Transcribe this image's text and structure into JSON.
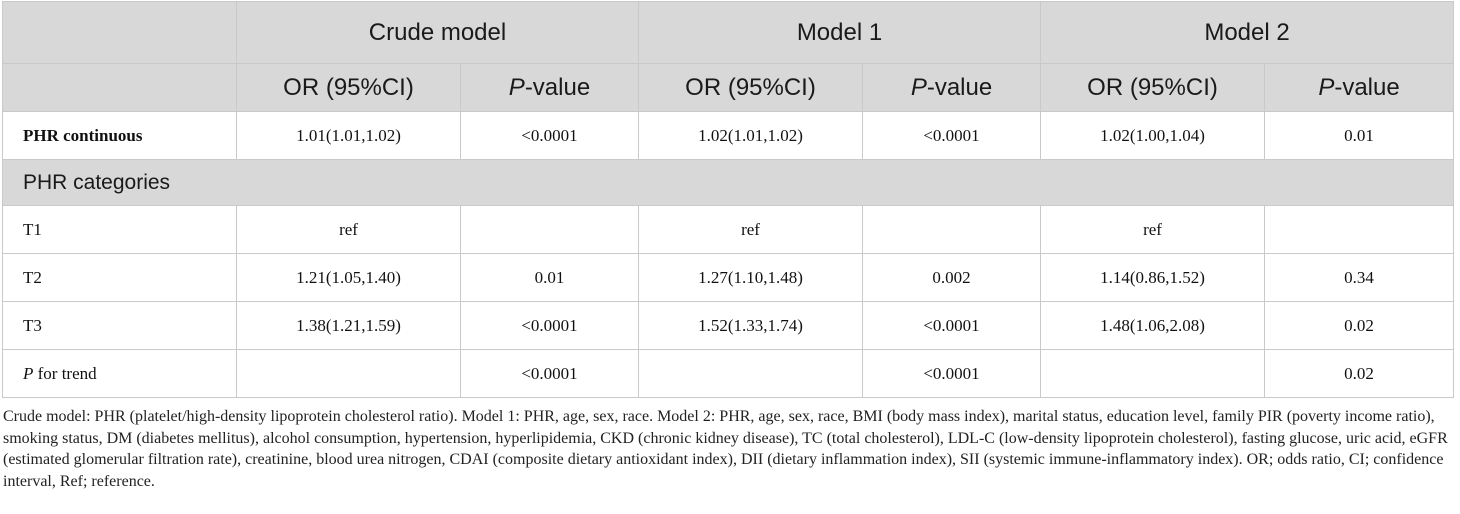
{
  "header": {
    "group1": "Crude model",
    "group2": "Model 1",
    "group3": "Model 2",
    "or_label": "OR (95%CI)",
    "p_letter": "P",
    "p_suffix": "-value"
  },
  "rows": {
    "continuous": {
      "label": "PHR continuous",
      "crude_or": "1.01(1.01,1.02)",
      "crude_p": "<0.0001",
      "m1_or": "1.02(1.01,1.02)",
      "m1_p": "<0.0001",
      "m2_or": "1.02(1.00,1.04)",
      "m2_p": "0.01"
    },
    "categories_label": "PHR categories",
    "t1": {
      "label": "T1",
      "crude_or": "ref",
      "crude_p": "",
      "m1_or": "ref",
      "m1_p": "",
      "m2_or": "ref",
      "m2_p": ""
    },
    "t2": {
      "label": "T2",
      "crude_or": "1.21(1.05,1.40)",
      "crude_p": "0.01",
      "m1_or": "1.27(1.10,1.48)",
      "m1_p": "0.002",
      "m2_or": "1.14(0.86,1.52)",
      "m2_p": "0.34"
    },
    "t3": {
      "label": "T3",
      "crude_or": "1.38(1.21,1.59)",
      "crude_p": "<0.0001",
      "m1_or": "1.52(1.33,1.74)",
      "m1_p": "<0.0001",
      "m2_or": "1.48(1.06,2.08)",
      "m2_p": "0.02"
    },
    "trend": {
      "label_italic": "P",
      "label_rest": " for trend",
      "crude_or": "",
      "crude_p": "<0.0001",
      "m1_or": "",
      "m1_p": "<0.0001",
      "m2_or": "",
      "m2_p": "0.02"
    }
  },
  "footnote": "Crude model: PHR (platelet/high-density lipoprotein cholesterol ratio). Model 1: PHR, age, sex, race. Model 2: PHR, age, sex, race, BMI (body mass index), marital status, education level, family PIR (poverty income ratio), smoking status, DM (diabetes mellitus), alcohol consumption, hypertension, hyperlipidemia, CKD (chronic kidney disease), TC (total cholesterol), LDL-C (low-density lipoprotein cholesterol), fasting glucose, uric acid, eGFR (estimated glomerular filtration rate), creatinine, blood urea nitrogen, CDAI (composite dietary antioxidant index), DII (dietary inflammation index), SII (systemic immune-inflammatory index). OR; odds ratio, CI; confidence interval, Ref; reference."
}
